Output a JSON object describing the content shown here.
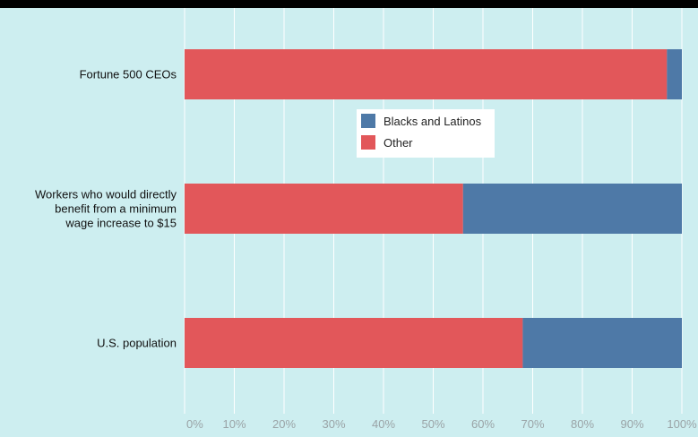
{
  "colors": {
    "background": "#cdeef0",
    "gridline": "#ffffff",
    "top_bar": "#000000"
  },
  "chart_data": {
    "type": "bar",
    "orientation": "horizontal",
    "stacked": true,
    "categories": [
      [
        "Fortune 500 CEOs"
      ],
      [
        "Workers who would directly",
        "benefit from a minimum",
        "wage increase to $15"
      ],
      [
        "U.S. population"
      ]
    ],
    "series": [
      {
        "name": "Other",
        "color": "#e2575a",
        "values": [
          97,
          56,
          68
        ]
      },
      {
        "name": "Blacks and Latinos",
        "color": "#4e79a7",
        "values": [
          3,
          44,
          32
        ]
      }
    ],
    "legend_order": [
      "Blacks and Latinos",
      "Other"
    ],
    "legend_position": "center",
    "xlim": [
      0,
      100
    ],
    "xticks": [
      "0%",
      "10%",
      "20%",
      "30%",
      "40%",
      "50%",
      "60%",
      "70%",
      "80%",
      "90%",
      "100%"
    ],
    "grid": "vertical",
    "title": "",
    "xlabel": "",
    "ylabel": ""
  }
}
